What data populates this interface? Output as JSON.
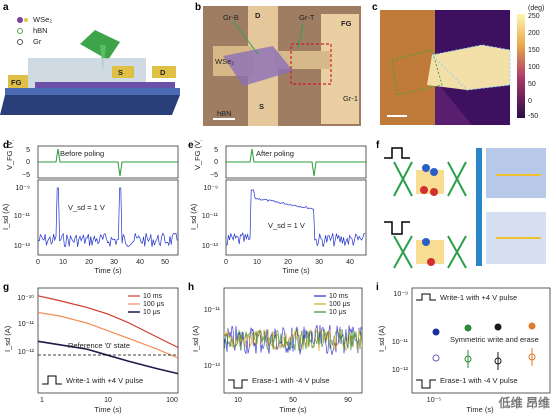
{
  "labels": {
    "a": "a",
    "b": "b",
    "c": "c",
    "d": "d",
    "e": "e",
    "f": "f",
    "g": "g",
    "h": "h",
    "i": "i"
  },
  "panel_a": {
    "legend": [
      "WSe₂",
      "hBN",
      "Gr"
    ],
    "tags": [
      "FG",
      "S",
      "D"
    ]
  },
  "panel_b": {
    "tags": [
      "D",
      "FG",
      "Gr-B",
      "Gr-T",
      "S",
      "hBN",
      "Gr-1",
      "WSe₂"
    ]
  },
  "panel_c": {
    "colorbar_ticks": [
      "250",
      "200",
      "150",
      "100",
      "50",
      "0",
      "-50"
    ],
    "colorbar_unit": "(deg)"
  },
  "panel_d": {
    "title": "Before poling",
    "ylabel_top": "V_FG (V)",
    "yticks_top": [
      "5",
      "0",
      "−5"
    ],
    "ylabel_bot": "I_sd (A)",
    "yticks_bot": [
      "10⁻⁹",
      "10⁻¹¹",
      "10⁻¹³"
    ],
    "annotation": "V_sd = 1 V",
    "xlabel": "Time (s)",
    "xticks": [
      "0",
      "10",
      "20",
      "30",
      "40",
      "50"
    ]
  },
  "panel_e": {
    "title": "After poling",
    "ylabel_top": "V_FG (V)",
    "yticks_top": [
      "5",
      "0",
      "−5"
    ],
    "ylabel_bot": "I_sd (A)",
    "yticks_bot": [
      "10⁻⁹",
      "10⁻¹¹",
      "10⁻¹³"
    ],
    "annotation": "V_sd = 1 V",
    "xlabel": "Time (s)",
    "xticks": [
      "0",
      "10",
      "20",
      "30",
      "40"
    ]
  },
  "panel_g": {
    "ylabel": "I_sd (A)",
    "yticks": [
      "10⁻¹⁰",
      "10⁻¹¹",
      "10⁻¹²"
    ],
    "xlabel": "Time (s)",
    "xticks": [
      "1",
      "10",
      "100"
    ],
    "legend": [
      "10 ms",
      "100 μs",
      "10 μs"
    ],
    "ref_label": "Reference '0' state",
    "pulse_label": "Write-1 with +4 V pulse"
  },
  "panel_h": {
    "ylabel": "I_sd (A)",
    "yticks": [
      "10⁻¹¹",
      "10⁻¹³"
    ],
    "xlabel": "Time (s)",
    "xticks": [
      "10",
      "50",
      "90"
    ],
    "legend": [
      "10 ms",
      "100 μs",
      "10 μs"
    ],
    "pulse_label": "Erase-1 with -4 V pulse"
  },
  "panel_i": {
    "ylabel": "I_sd (A)",
    "yticks": [
      "10⁻⁹",
      "10⁻¹¹",
      "10⁻¹²"
    ],
    "xlabel": "Time (s)",
    "xticks": [
      "10⁻⁵"
    ],
    "write_label": "Write-1 with +4 V pulse",
    "sym_label": "Symmetric write and erase",
    "erase_label": "Erase-1 with -4 V pulse"
  },
  "watermark": "低维 昂维",
  "chart_data": [
    {
      "type": "line",
      "panel": "d",
      "title": "Before poling",
      "xlabel": "Time (s)",
      "ylabel": "I_sd (A)",
      "xlim": [
        0,
        55
      ],
      "series": [
        {
          "name": "V_FG",
          "x": [
            0,
            7,
            7.5,
            8,
            31,
            31.5,
            32,
            55
          ],
          "values": [
            0,
            0,
            4,
            0,
            0,
            -4,
            0,
            0
          ]
        }
      ]
    },
    {
      "type": "line",
      "panel": "e",
      "title": "After poling",
      "xlabel": "Time (s)",
      "ylabel": "I_sd (A)",
      "xlim": [
        0,
        45
      ],
      "series": [
        {
          "name": "V_FG",
          "x": [
            0,
            8,
            8.5,
            9,
            28,
            28.5,
            29,
            45
          ],
          "values": [
            0,
            0,
            4,
            0,
            0,
            -4,
            0,
            0
          ]
        }
      ]
    },
    {
      "type": "line",
      "panel": "g",
      "xlabel": "Time (s)",
      "ylabel": "I_sd (A)",
      "xscale": "log",
      "xlim": [
        1,
        100
      ],
      "series": [
        {
          "name": "10 ms",
          "x": [
            1,
            2,
            5,
            10,
            20,
            50,
            100
          ],
          "values": [
            3e-10,
            2.2e-10,
            1.4e-10,
            9e-11,
            5e-11,
            2e-11,
            1e-11
          ]
        },
        {
          "name": "100 μs",
          "x": [
            1,
            2,
            5,
            10,
            20,
            50,
            100
          ],
          "values": [
            1e-10,
            8e-11,
            5e-11,
            3e-11,
            1.8e-11,
            9e-12,
            5e-12
          ]
        },
        {
          "name": "10 μs",
          "x": [
            1,
            2,
            5,
            10,
            20,
            50,
            100
          ],
          "values": [
            1.5e-11,
            1.2e-11,
            9e-12,
            6e-12,
            4e-12,
            2.5e-12,
            1.8e-12
          ]
        }
      ]
    }
  ]
}
